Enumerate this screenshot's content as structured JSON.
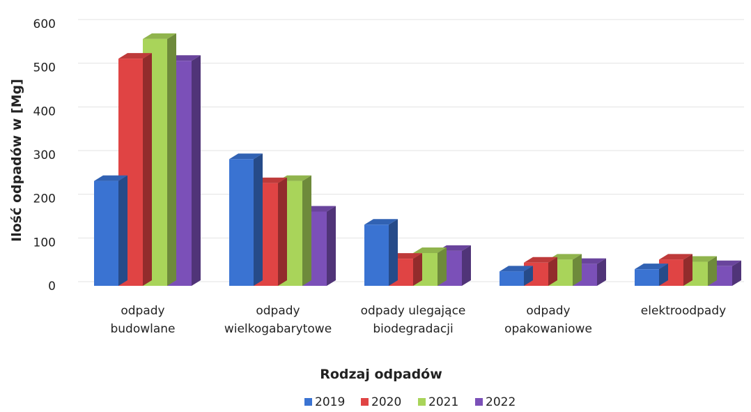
{
  "chart_data": {
    "type": "bar",
    "style": "3d-clustered-column",
    "categories": [
      [
        "odpady",
        "budowlane"
      ],
      [
        "odpady",
        "wielkogabarytowe"
      ],
      [
        "odpady ulegające",
        "biodegradacji"
      ],
      [
        "odpady",
        "opakowaniowe"
      ],
      [
        "elektroodpady"
      ]
    ],
    "series": [
      {
        "name": "2019",
        "color": "#3a73d2",
        "values": [
          240,
          290,
          140,
          33,
          38
        ]
      },
      {
        "name": "2020",
        "color": "#e04444",
        "values": [
          520,
          235,
          62,
          53,
          60
        ]
      },
      {
        "name": "2021",
        "color": "#a9d45a",
        "values": [
          565,
          240,
          75,
          60,
          55
        ]
      },
      {
        "name": "2022",
        "color": "#7b50b8",
        "values": [
          515,
          170,
          80,
          50,
          45
        ]
      }
    ],
    "title": "",
    "xlabel": "Rodzaj odpadów",
    "ylabel": "Ilość odpadów w [Mg]",
    "ylim": [
      0,
      600
    ],
    "yticks": [
      0,
      100,
      200,
      300,
      400,
      500,
      600
    ],
    "grid": true,
    "legend": "bottom"
  }
}
